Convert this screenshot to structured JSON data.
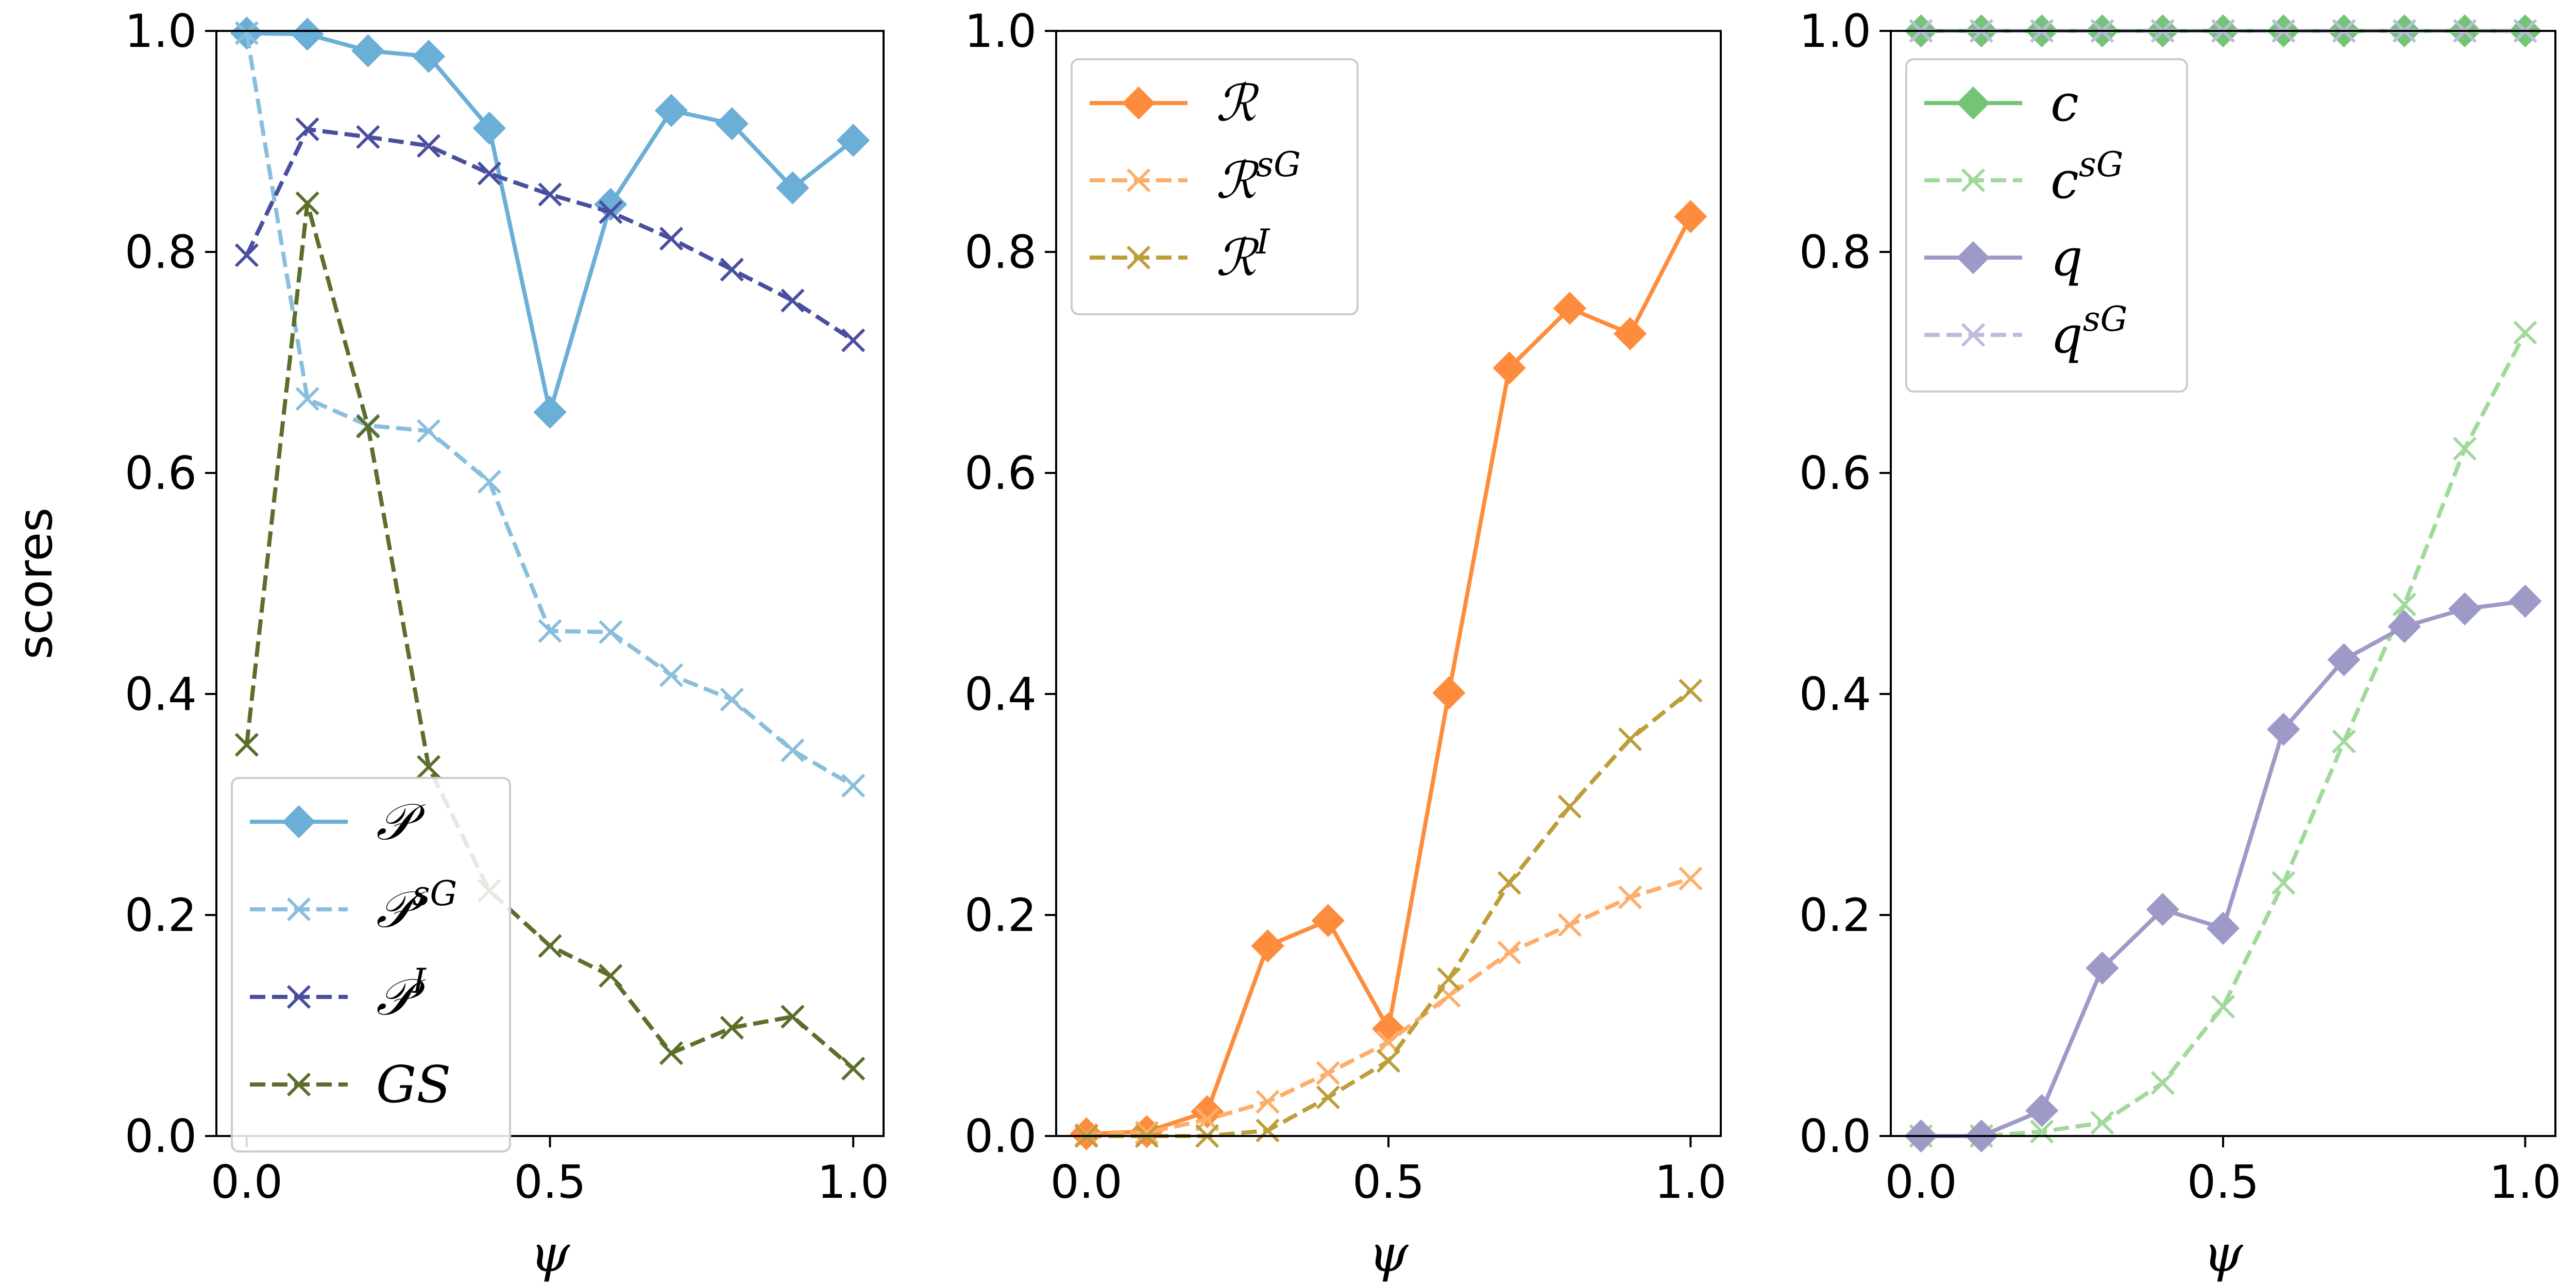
{
  "chart_data": [
    {
      "type": "line",
      "xlabel": "ψ",
      "ylabel": "scores",
      "xlim": [
        -0.05,
        1.05
      ],
      "ylim": [
        0.0,
        1.0
      ],
      "xticks": [
        "0.0",
        "0.5",
        "1.0"
      ],
      "yticks": [
        "0.0",
        "0.2",
        "0.4",
        "0.6",
        "0.8",
        "1.0"
      ],
      "x": [
        0.0,
        0.1,
        0.2,
        0.3,
        0.4,
        0.5,
        0.6,
        0.7,
        0.8,
        0.9,
        1.0
      ],
      "legend_position": "lower-left",
      "series": [
        {
          "name": "𝒫",
          "sup": "",
          "color": "#6baed6",
          "style": "solid",
          "marker": "diamond",
          "values": [
            0.998,
            0.997,
            0.982,
            0.977,
            0.912,
            0.655,
            0.843,
            0.928,
            0.916,
            0.858,
            0.901
          ]
        },
        {
          "name": "𝒫",
          "sup": "sG",
          "color": "#89bedc",
          "style": "dashed",
          "marker": "x",
          "values": [
            0.998,
            0.667,
            0.643,
            0.638,
            0.592,
            0.457,
            0.456,
            0.417,
            0.395,
            0.349,
            0.317
          ]
        },
        {
          "name": "𝒫",
          "sup": "I",
          "color": "#4a4ea0",
          "style": "dashed",
          "marker": "x",
          "values": [
            0.797,
            0.911,
            0.904,
            0.896,
            0.871,
            0.852,
            0.836,
            0.812,
            0.784,
            0.756,
            0.72
          ]
        },
        {
          "name": "GS",
          "sup": "",
          "color": "#5b6e2a",
          "style": "dashed",
          "marker": "x",
          "values": [
            0.354,
            0.844,
            0.642,
            0.334,
            0.222,
            0.172,
            0.145,
            0.075,
            0.098,
            0.108,
            0.061
          ]
        }
      ]
    },
    {
      "type": "line",
      "xlabel": "ψ",
      "ylabel": "",
      "xlim": [
        -0.05,
        1.05
      ],
      "ylim": [
        0.0,
        1.0
      ],
      "xticks": [
        "0.0",
        "0.5",
        "1.0"
      ],
      "yticks": [
        "0.0",
        "0.2",
        "0.4",
        "0.6",
        "0.8",
        "1.0"
      ],
      "x": [
        0.0,
        0.1,
        0.2,
        0.3,
        0.4,
        0.5,
        0.6,
        0.7,
        0.8,
        0.9,
        1.0
      ],
      "legend_position": "upper-left",
      "series": [
        {
          "name": "ℛ",
          "sup": "",
          "color": "#fd8d3c",
          "style": "solid",
          "marker": "diamond",
          "values": [
            0.002,
            0.004,
            0.022,
            0.172,
            0.195,
            0.097,
            0.401,
            0.695,
            0.749,
            0.726,
            0.832
          ]
        },
        {
          "name": "ℛ",
          "sup": "sG",
          "color": "#fdae6b",
          "style": "dashed",
          "marker": "x",
          "values": [
            0.001,
            0.003,
            0.015,
            0.031,
            0.057,
            0.085,
            0.127,
            0.166,
            0.191,
            0.216,
            0.233
          ]
        },
        {
          "name": "ℛ",
          "sup": "I",
          "color": "#bd9e39",
          "style": "dashed",
          "marker": "x",
          "values": [
            0.0,
            0.0,
            0.0,
            0.005,
            0.035,
            0.068,
            0.142,
            0.229,
            0.298,
            0.359,
            0.403
          ]
        }
      ]
    },
    {
      "type": "line",
      "xlabel": "ψ",
      "ylabel": "",
      "xlim": [
        -0.05,
        1.05
      ],
      "ylim": [
        0.0,
        1.0
      ],
      "xticks": [
        "0.0",
        "0.5",
        "1.0"
      ],
      "yticks": [
        "0.0",
        "0.2",
        "0.4",
        "0.6",
        "0.8",
        "1.0"
      ],
      "x": [
        0.0,
        0.1,
        0.2,
        0.3,
        0.4,
        0.5,
        0.6,
        0.7,
        0.8,
        0.9,
        1.0
      ],
      "legend_position": "upper-left",
      "series": [
        {
          "name": "c",
          "sup": "",
          "color": "#74c476",
          "style": "solid",
          "marker": "diamond",
          "values": [
            1.0,
            1.0,
            1.0,
            1.0,
            1.0,
            1.0,
            1.0,
            1.0,
            1.0,
            1.0,
            1.0
          ]
        },
        {
          "name": "c",
          "sup": "sG",
          "color": "#a1d99b",
          "style": "dashed",
          "marker": "x",
          "values": [
            0.0,
            0.0,
            0.004,
            0.012,
            0.048,
            0.117,
            0.229,
            0.357,
            0.481,
            0.622,
            0.727
          ]
        },
        {
          "name": "q",
          "sup": "",
          "color": "#9e9ac8",
          "style": "solid",
          "marker": "diamond",
          "values": [
            0.0,
            0.0,
            0.023,
            0.152,
            0.205,
            0.188,
            0.368,
            0.431,
            0.461,
            0.477,
            0.484
          ]
        },
        {
          "name": "q",
          "sup": "sG",
          "color": "#bcbddc",
          "style": "dashed",
          "marker": "x",
          "values": [
            1.0,
            1.0,
            1.0,
            1.0,
            1.0,
            1.0,
            1.0,
            1.0,
            1.0,
            1.0,
            1.0
          ]
        }
      ]
    }
  ]
}
